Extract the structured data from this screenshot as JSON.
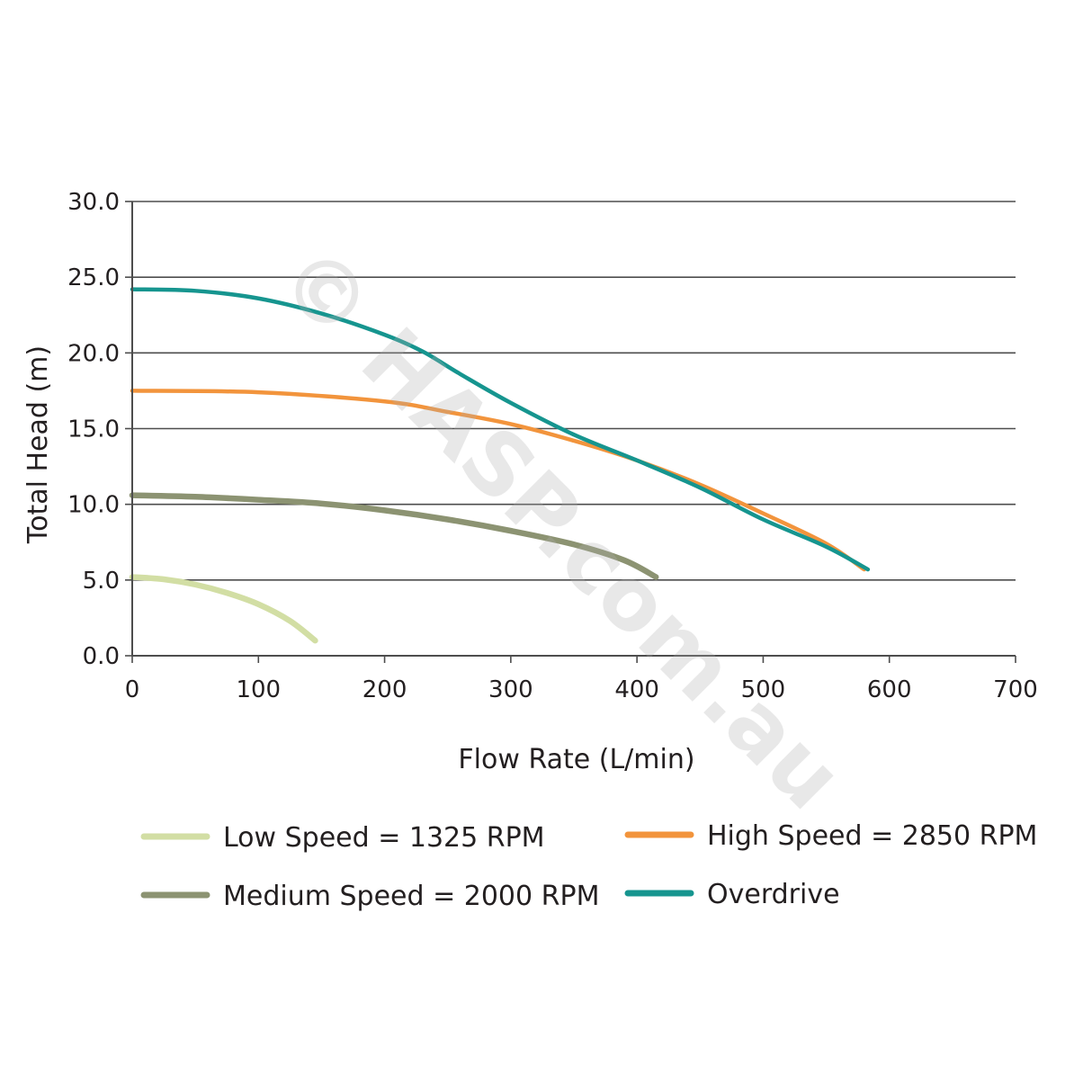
{
  "chart_data": {
    "type": "line",
    "title": "",
    "xlabel": "Flow Rate (L/min)",
    "ylabel": "Total Head (m)",
    "xlim": [
      0,
      700
    ],
    "ylim": [
      0,
      30
    ],
    "x_ticks": [
      "0",
      "100",
      "200",
      "300",
      "400",
      "500",
      "600",
      "700"
    ],
    "y_ticks": [
      "0.0",
      "5.0",
      "10.0",
      "15.0",
      "20.0",
      "25.0",
      "30.0"
    ],
    "grid": "horizontal",
    "legend_position": "bottom",
    "series": [
      {
        "name": "Low Speed = 1325 RPM",
        "color": "#d2dea4",
        "points": [
          [
            0,
            5.2
          ],
          [
            25,
            5.05
          ],
          [
            50,
            4.7
          ],
          [
            75,
            4.15
          ],
          [
            100,
            3.4
          ],
          [
            125,
            2.3
          ],
          [
            145,
            1.0
          ]
        ]
      },
      {
        "name": "Medium Speed = 2000 RPM",
        "color": "#8c9372",
        "points": [
          [
            0,
            10.6
          ],
          [
            50,
            10.5
          ],
          [
            100,
            10.3
          ],
          [
            150,
            10.05
          ],
          [
            200,
            9.6
          ],
          [
            250,
            9.0
          ],
          [
            300,
            8.25
          ],
          [
            350,
            7.35
          ],
          [
            390,
            6.3
          ],
          [
            415,
            5.2
          ]
        ]
      },
      {
        "name": "High Speed = 2850 RPM",
        "color": "#f2943c",
        "points": [
          [
            0,
            17.5
          ],
          [
            100,
            17.4
          ],
          [
            200,
            16.8
          ],
          [
            250,
            16.1
          ],
          [
            300,
            15.3
          ],
          [
            350,
            14.2
          ],
          [
            400,
            12.9
          ],
          [
            450,
            11.3
          ],
          [
            500,
            9.4
          ],
          [
            550,
            7.4
          ],
          [
            580,
            5.7
          ]
        ]
      },
      {
        "name": "Overdrive",
        "color": "#16958f",
        "points": [
          [
            0,
            24.2
          ],
          [
            50,
            24.1
          ],
          [
            100,
            23.6
          ],
          [
            150,
            22.6
          ],
          [
            200,
            21.2
          ],
          [
            230,
            20.1
          ],
          [
            260,
            18.6
          ],
          [
            300,
            16.7
          ],
          [
            350,
            14.6
          ],
          [
            400,
            12.9
          ],
          [
            450,
            11.1
          ],
          [
            500,
            9.0
          ],
          [
            550,
            7.2
          ],
          [
            583,
            5.7
          ]
        ]
      }
    ]
  },
  "watermark": "© HASP.com.au"
}
